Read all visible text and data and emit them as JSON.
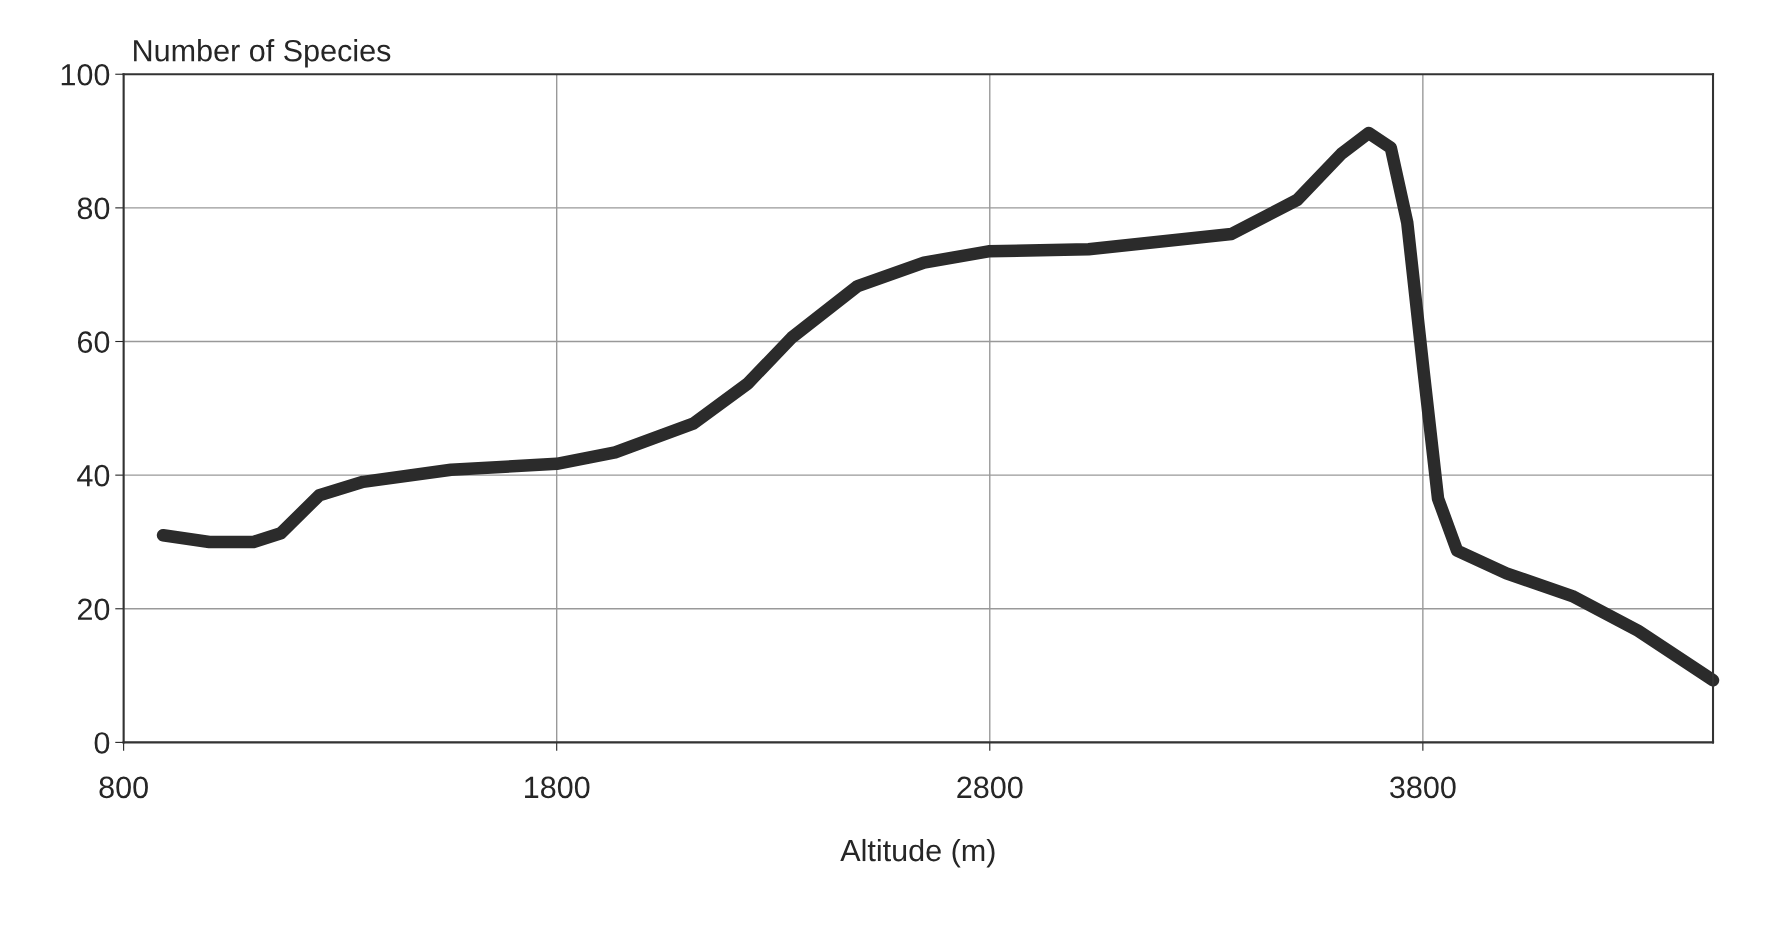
{
  "chart_data": {
    "type": "line",
    "xlabel": "Altitude (m)",
    "ylabel": "Number of Species",
    "x": [
      891,
      998,
      1100,
      1163,
      1252,
      1353,
      1556,
      1800,
      1935,
      2115,
      2241,
      2343,
      2495,
      2648,
      2797,
      3028,
      3358,
      3510,
      3612,
      3675,
      3726,
      3764,
      3802,
      3835,
      3879,
      3993,
      4145,
      4297,
      4470
    ],
    "series": [
      {
        "color": "#2b2b2b",
        "values": [
          31,
          30,
          30,
          31.3,
          37,
          39,
          40.8,
          41.7,
          43.4,
          47.7,
          53.7,
          60.6,
          68.3,
          71.8,
          73.5,
          73.8,
          76.1,
          81.2,
          88.1,
          91.2,
          89,
          77.8,
          55.4,
          36.5,
          28.7,
          25.3,
          21.9,
          16.7,
          9.3
        ]
      }
    ],
    "xlim": [
      800,
      4470
    ],
    "xticks": [
      800,
      1800,
      2800,
      3800
    ],
    "ylim": [
      0,
      100
    ],
    "yticks": [
      0,
      20,
      40,
      60,
      80,
      100
    ],
    "grid": true,
    "legend": false,
    "marker": "none",
    "line_style": "solid"
  }
}
